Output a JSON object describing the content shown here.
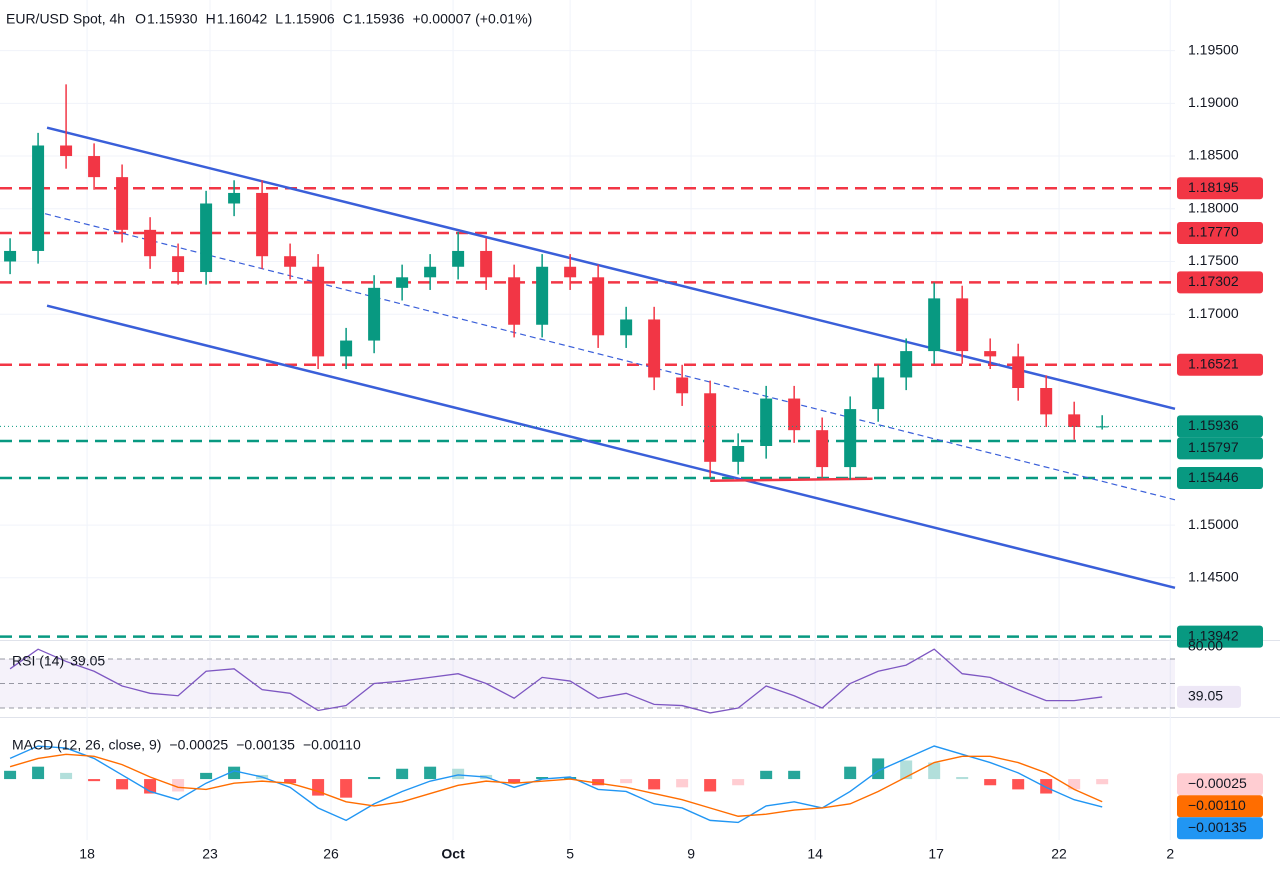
{
  "chart_data": [
    {
      "type": "candlestick",
      "title": "EUR/USD Spot, 4h",
      "ohlc_legend": [
        {
          "key": "O",
          "label": "1.15930"
        },
        {
          "key": "H",
          "label": "1.16042"
        },
        {
          "key": "L",
          "label": "1.15906"
        },
        {
          "key": "C",
          "label": "1.15936"
        }
      ],
      "change_label": "+0.00007 (+0.01%)",
      "open": [
        1.175,
        1.176,
        1.186,
        1.185,
        1.183,
        1.178,
        1.1755,
        1.174,
        1.1805,
        1.1815,
        1.1755,
        1.1745,
        1.166,
        1.1675,
        1.1725,
        1.1735,
        1.1745,
        1.176,
        1.1735,
        1.169,
        1.1745,
        1.1735,
        1.168,
        1.1695,
        1.164,
        1.1625,
        1.156,
        1.1575,
        1.162,
        1.159,
        1.1555,
        1.161,
        1.164,
        1.1665,
        1.1715,
        1.1665,
        1.166,
        1.163,
        1.1605,
        1.1593
      ],
      "high": [
        1.1772,
        1.1872,
        1.1918,
        1.1862,
        1.1842,
        1.1792,
        1.1767,
        1.1817,
        1.1827,
        1.1827,
        1.1767,
        1.1757,
        1.1687,
        1.1737,
        1.1747,
        1.1757,
        1.1778,
        1.1772,
        1.1747,
        1.1757,
        1.1757,
        1.1747,
        1.1707,
        1.1707,
        1.1652,
        1.1637,
        1.1587,
        1.1632,
        1.1632,
        1.1602,
        1.1622,
        1.1652,
        1.1677,
        1.173,
        1.1727,
        1.1677,
        1.1672,
        1.1642,
        1.1617,
        1.16042
      ],
      "low": [
        1.1738,
        1.1748,
        1.1838,
        1.1818,
        1.1768,
        1.1743,
        1.1728,
        1.1728,
        1.1793,
        1.1743,
        1.1733,
        1.1648,
        1.1648,
        1.1663,
        1.1713,
        1.1723,
        1.1733,
        1.1723,
        1.1678,
        1.1678,
        1.1723,
        1.1668,
        1.1668,
        1.1628,
        1.1613,
        1.1545,
        1.1548,
        1.1563,
        1.1578,
        1.1545,
        1.1543,
        1.1598,
        1.1628,
        1.1653,
        1.1653,
        1.1648,
        1.1618,
        1.1593,
        1.1581,
        1.15906
      ],
      "close": [
        1.176,
        1.186,
        1.185,
        1.183,
        1.178,
        1.1755,
        1.174,
        1.1805,
        1.1815,
        1.1755,
        1.1745,
        1.166,
        1.1675,
        1.1725,
        1.1735,
        1.1745,
        1.176,
        1.1735,
        1.169,
        1.1745,
        1.1735,
        1.168,
        1.1695,
        1.164,
        1.1625,
        1.156,
        1.1575,
        1.162,
        1.159,
        1.1555,
        1.161,
        1.164,
        1.1665,
        1.1715,
        1.1665,
        1.166,
        1.163,
        1.1605,
        1.1593,
        1.15936
      ],
      "up_color": "#089981",
      "down_color": "#f23645",
      "xlim": [
        -0.36,
        41.6
      ],
      "xticks": [
        {
          "value": 2.75,
          "label": "18"
        },
        {
          "value": 7.14,
          "label": "23"
        },
        {
          "value": 11.46,
          "label": "26"
        },
        {
          "value": 15.82,
          "label": "Oct"
        },
        {
          "value": 20.0,
          "label": "5"
        },
        {
          "value": 24.32,
          "label": "9"
        },
        {
          "value": 28.75,
          "label": "14"
        },
        {
          "value": 33.07,
          "label": "17"
        },
        {
          "value": 37.46,
          "label": "22"
        },
        {
          "value": 41.43,
          "label": "2"
        }
      ],
      "ylim": [
        1.1391,
        1.1998
      ],
      "yticks": [
        {
          "value": 1.195,
          "label": "1.19500"
        },
        {
          "value": 1.19,
          "label": "1.19000"
        },
        {
          "value": 1.185,
          "label": "1.18500"
        },
        {
          "value": 1.18,
          "label": "1.18000"
        },
        {
          "value": 1.175,
          "label": "1.17500"
        },
        {
          "value": 1.17,
          "label": "1.17000"
        },
        {
          "value": 1.15,
          "label": "1.15000"
        },
        {
          "value": 1.145,
          "label": "1.14500"
        }
      ],
      "grid": true,
      "levels": [
        {
          "value": 1.18195,
          "label": "1.18195",
          "color": "#f23645"
        },
        {
          "value": 1.1777,
          "label": "1.17770",
          "color": "#f23645"
        },
        {
          "value": 1.17302,
          "label": "1.17302",
          "color": "#f23645"
        },
        {
          "value": 1.16521,
          "label": "1.16521",
          "color": "#f23645"
        },
        {
          "value": 1.15797,
          "label": "1.15797",
          "color": "#089981"
        },
        {
          "value": 1.15446,
          "label": "1.15446",
          "color": "#089981"
        },
        {
          "value": 1.13942,
          "label": "1.13942",
          "color": "#089981"
        }
      ],
      "last_price": {
        "value": 1.15936,
        "label": "1.15936",
        "color": "#089981"
      },
      "trendlines": [
        {
          "color": "#3a5fd9",
          "dashed": false,
          "x": [
            1.32,
            41.6
          ],
          "y": [
            1.18769,
            1.16103
          ]
        },
        {
          "color": "#3a5fd9",
          "dashed": false,
          "x": [
            1.32,
            41.6
          ],
          "y": [
            1.17081,
            1.14405
          ]
        },
        {
          "color": "#3a5fd9",
          "dashed": true,
          "x": [
            1.25,
            41.6
          ],
          "y": [
            1.17953,
            1.1524
          ]
        },
        {
          "color": "#f23645",
          "dashed": false,
          "x": [
            25.0,
            30.8
          ],
          "y": [
            1.1542,
            1.15439
          ]
        }
      ]
    },
    {
      "type": "line",
      "title": "RSI (14)",
      "last_label": "39.05",
      "color": "#7e57c2",
      "values": [
        62,
        78,
        68,
        60,
        48,
        42,
        40,
        60,
        62,
        45,
        42,
        28,
        32,
        50,
        52,
        55,
        58,
        50,
        38,
        55,
        52,
        38,
        42,
        33,
        32,
        26,
        30,
        48,
        40,
        30,
        50,
        60,
        65,
        78,
        58,
        55,
        45,
        36,
        36,
        39.05
      ],
      "ylim": [
        24.3,
        85.5
      ],
      "yticks": [
        {
          "value": 80,
          "label": "80.00"
        }
      ],
      "levels": [
        70,
        50,
        30
      ]
    },
    {
      "type": "macd",
      "title": "MACD (12, 26, close, 9)",
      "series": [
        {
          "kind": "bar",
          "color": "#f7a9a9",
          "label": "−0.00025",
          "colors": {
            "up_rising": "#26a69a",
            "up_falling": "#b2dfdb",
            "down_falling": "#ff5252",
            "down_rising": "#ffcdd2"
          },
          "values": [
            0.0004,
            0.0006,
            0.0003,
            -0.0001,
            -0.0005,
            -0.0007,
            -0.0006,
            0.0003,
            0.0006,
            0.0002,
            -0.0002,
            -0.0008,
            -0.0009,
            0.0001,
            0.0005,
            0.0006,
            0.0005,
            0.0002,
            -0.0002,
            0.0001,
            0.0001,
            -0.0003,
            -0.0002,
            -0.0005,
            -0.0004,
            -0.0006,
            -0.0003,
            0.0004,
            0.0004,
            0.0,
            0.0006,
            0.001,
            0.0009,
            0.0008,
            0.0001,
            -0.0003,
            -0.0005,
            -0.0007,
            -0.0005,
            -0.00025
          ]
        },
        {
          "kind": "line",
          "color": "#2196f3",
          "label": "−0.00135",
          "values": [
            0.001,
            0.0016,
            0.0015,
            0.001,
            0.0002,
            -0.0006,
            -0.001,
            -0.0002,
            0.0004,
            0.0001,
            -0.0004,
            -0.0014,
            -0.002,
            -0.0012,
            -0.0006,
            -0.0001,
            0.0002,
            0.0001,
            -0.0004,
            0.0,
            0.0001,
            -0.0005,
            -0.0006,
            -0.0012,
            -0.0014,
            -0.002,
            -0.0021,
            -0.0013,
            -0.0011,
            -0.0014,
            -0.0006,
            0.0004,
            0.001,
            0.0016,
            0.0012,
            0.0008,
            0.0003,
            -0.0004,
            -0.001,
            -0.00135
          ]
        },
        {
          "kind": "line",
          "color": "#ff6d00",
          "label": "−0.00110",
          "values": [
            0.0006,
            0.001,
            0.0012,
            0.0011,
            0.0007,
            0.0001,
            -0.0004,
            -0.0005,
            -0.0002,
            -0.0001,
            -0.0002,
            -0.0006,
            -0.0011,
            -0.0013,
            -0.0011,
            -0.0007,
            -0.0003,
            -0.0001,
            -0.0002,
            -0.0001,
            0.0,
            -0.0002,
            -0.0004,
            -0.0007,
            -0.001,
            -0.0014,
            -0.0018,
            -0.0017,
            -0.0015,
            -0.0014,
            -0.0012,
            -0.0006,
            0.0001,
            0.0008,
            0.0011,
            0.0011,
            0.0008,
            0.0003,
            -0.0005,
            -0.0011
          ]
        }
      ],
      "ylim": [
        -0.00295,
        0.00286
      ]
    }
  ]
}
